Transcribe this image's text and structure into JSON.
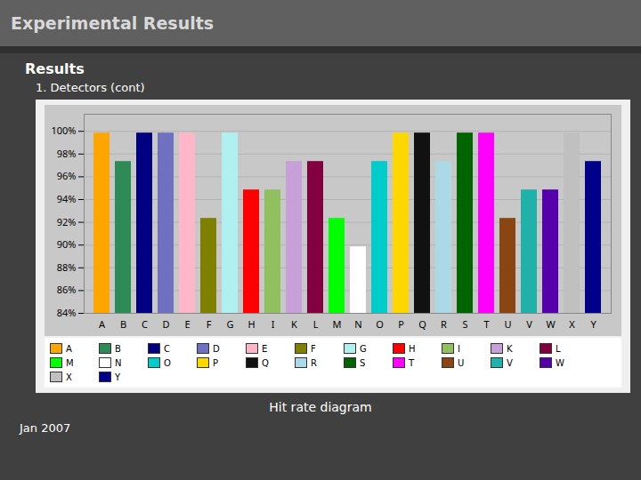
{
  "chart_data": {
    "type": "bar",
    "title": "Experimental Results",
    "subtitle": "Results",
    "annotations": [
      "1. Detectors (cont)"
    ],
    "caption": "Hit rate diagram",
    "footer": "Jan 2007",
    "categories": [
      "A",
      "B",
      "C",
      "D",
      "E",
      "F",
      "G",
      "H",
      "I",
      "K",
      "L",
      "M",
      "N",
      "O",
      "P",
      "Q",
      "R",
      "S",
      "T",
      "U",
      "V",
      "W",
      "X",
      "Y"
    ],
    "values": [
      100,
      97.5,
      100,
      100,
      100,
      92.5,
      100,
      95,
      95,
      97.5,
      97.5,
      92.5,
      90,
      97.5,
      100,
      100,
      97.5,
      100,
      100,
      92.5,
      95,
      95,
      100,
      97.5
    ],
    "colors": [
      "#FFA500",
      "#2E8B57",
      "#000080",
      "#7070C0",
      "#FFB6C8",
      "#808000",
      "#B0F0F0",
      "#FF0000",
      "#90C060",
      "#C8A0D8",
      "#800040",
      "#00FF00",
      "#FFFFFF",
      "#00CCCC",
      "#FFD700",
      "#111111",
      "#ADD8E6",
      "#006400",
      "#FF00FF",
      "#8B4513",
      "#20B2AA",
      "#5500AA",
      "#C0C0C0",
      "#00008B"
    ],
    "ylim": [
      84,
      101.5
    ],
    "yticks": [
      {
        "value": 84,
        "label": "84%"
      },
      {
        "value": 86,
        "label": "86%"
      },
      {
        "value": 88,
        "label": "88%"
      },
      {
        "value": 90,
        "label": "90%"
      },
      {
        "value": 92,
        "label": "92%"
      },
      {
        "value": 94,
        "label": "94%"
      },
      {
        "value": 96,
        "label": "96%"
      },
      {
        "value": 98,
        "label": "98%"
      },
      {
        "value": 100,
        "label": "100%"
      }
    ],
    "grid": true,
    "legend": "bottom"
  }
}
